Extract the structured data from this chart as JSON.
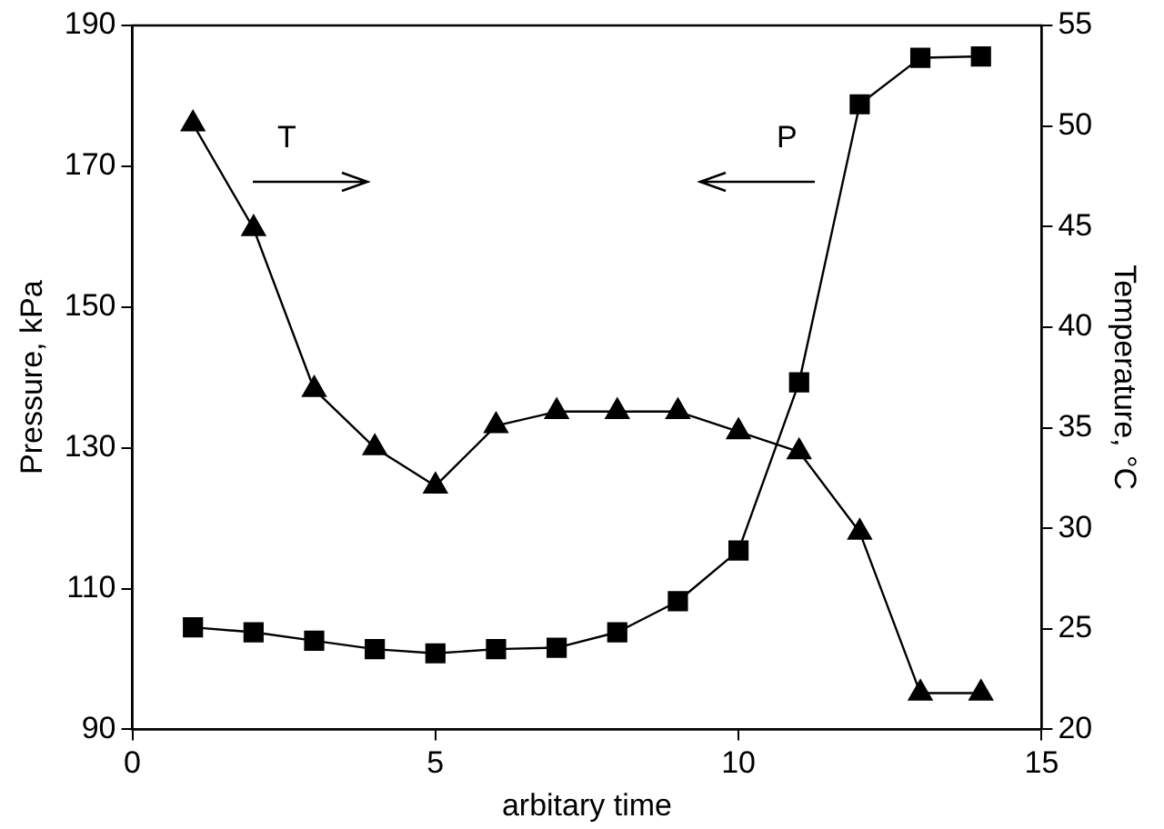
{
  "chart_data": {
    "type": "line",
    "xlabel": "arbitary time",
    "ylabel": "Pressure, kPa",
    "y2label": "Temperature, °C",
    "x": [
      1,
      2,
      3,
      4,
      5,
      6,
      7,
      8,
      9,
      10,
      11,
      12,
      13,
      14
    ],
    "series": [
      {
        "name": "P",
        "color": "#000000",
        "marker": "square",
        "values": [
          104.5,
          103.8,
          102.6,
          101.4,
          100.8,
          101.4,
          101.6,
          103.8,
          108.2,
          115.4,
          139.3,
          178.8,
          185.4,
          185.6
        ]
      },
      {
        "name": "T",
        "color": "#000000",
        "marker": "triangle",
        "axis": "y2",
        "values": [
          50.1,
          44.9,
          36.9,
          34.0,
          32.1,
          35.1,
          35.8,
          35.8,
          35.8,
          34.8,
          33.8,
          29.8,
          21.8,
          21.8
        ]
      }
    ],
    "xlim": [
      0,
      15
    ],
    "xticks": [
      0,
      5,
      10,
      15
    ],
    "ylim": [
      90,
      190
    ],
    "yticks": [
      90,
      110,
      130,
      150,
      170,
      190
    ],
    "y2lim": [
      20,
      55
    ],
    "y2ticks": [
      20,
      25,
      30,
      35,
      40,
      45,
      50,
      55
    ],
    "grid": false,
    "legend": false
  }
}
